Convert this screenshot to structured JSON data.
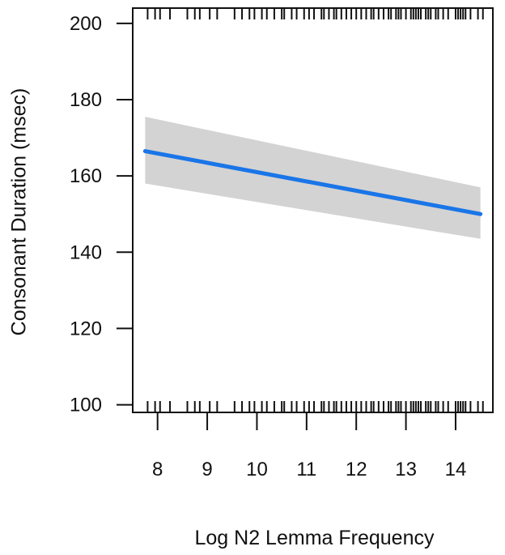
{
  "chart_data": {
    "type": "line",
    "xlabel": "Log N2 Lemma Frequency",
    "ylabel": "Consonant Duration (msec)",
    "xlim": [
      7.5,
      14.75
    ],
    "ylim": [
      98,
      204
    ],
    "x_ticks": [
      8,
      9,
      10,
      11,
      12,
      13,
      14
    ],
    "y_ticks": [
      100,
      120,
      140,
      160,
      180,
      200
    ],
    "grid": false,
    "line_color": "#1a75e8",
    "band_color": "#d3d3d3",
    "series": [
      {
        "x": [
          7.75,
          14.5
        ],
        "y": [
          166.5,
          150
        ],
        "ci_lower": [
          158,
          143.5
        ],
        "ci_upper": [
          175.5,
          157
        ]
      }
    ],
    "rug_x": [
      7.8,
      7.95,
      8.05,
      8.25,
      8.6,
      8.75,
      8.85,
      9.05,
      9.2,
      9.55,
      9.7,
      9.85,
      9.95,
      10.1,
      10.2,
      10.35,
      10.5,
      10.55,
      10.7,
      10.8,
      10.95,
      11.05,
      11.15,
      11.3,
      11.35,
      11.45,
      11.55,
      11.6,
      11.7,
      11.8,
      11.9,
      12.0,
      12.1,
      12.2,
      12.3,
      12.35,
      12.45,
      12.55,
      12.65,
      12.7,
      12.8,
      12.85,
      12.9,
      13.0,
      13.1,
      13.15,
      13.2,
      13.25,
      13.3,
      13.4,
      13.45,
      13.5,
      13.6,
      13.65,
      13.75,
      13.85,
      14.0,
      14.05,
      14.1,
      14.15,
      14.2,
      14.3,
      14.45,
      14.55
    ]
  }
}
